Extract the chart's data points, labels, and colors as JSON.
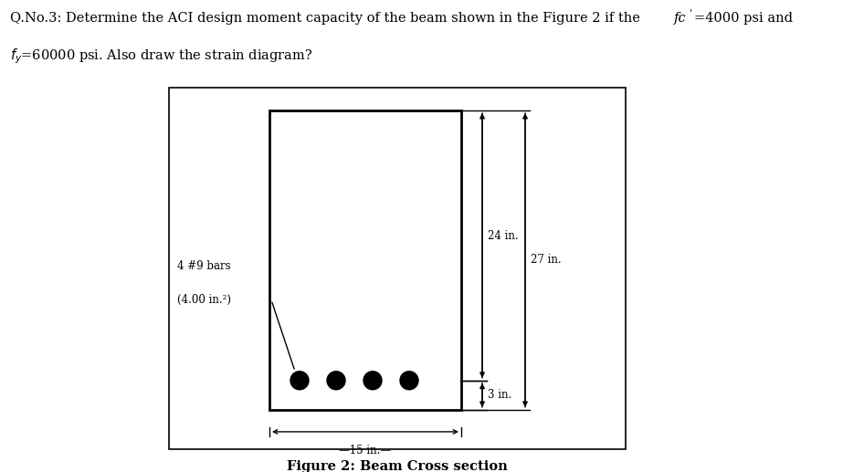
{
  "background_color": "#ffffff",
  "title1_normal": "Q.No.3: Determine the ACI design moment capacity of the beam shown in the Figure 2 if the ",
  "title1_italic": "fc",
  "title1_prime": "ʹ",
  "title1_end": "=4000 psi and",
  "title2": "fy=60000 psi. Also draw the strain diagram?",
  "caption": "Figure 2: Beam Cross section",
  "label_bars": "4 #9 bars",
  "label_area": "(4.00 in.²)",
  "dim_width_text": "←—15 in.—→",
  "dim_24": "24 in.",
  "dim_27": "27 in.",
  "dim_3": "3 in.",
  "n_bars": 4
}
